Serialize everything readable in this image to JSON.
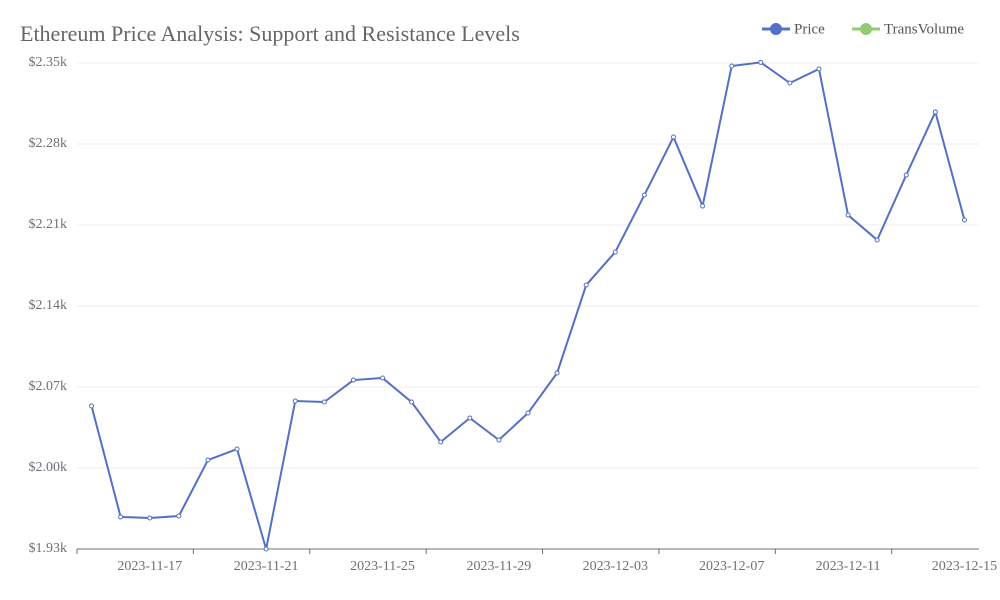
{
  "chart_data": {
    "type": "line",
    "title": "Ethereum Price Analysis: Support and Resistance Levels",
    "categories": [
      null,
      null,
      "2023-11-17",
      null,
      null,
      null,
      "2023-11-21",
      null,
      null,
      null,
      "2023-11-25",
      null,
      null,
      null,
      "2023-11-29",
      null,
      null,
      null,
      "2023-12-03",
      null,
      null,
      null,
      "2023-12-07",
      null,
      null,
      null,
      "2023-12-11",
      null,
      null,
      null,
      "2023-12-15"
    ],
    "series": [
      {
        "name": "Price",
        "color": "#5470c6",
        "values": [
          2053.6,
          1957.7,
          1956.8,
          1958.5,
          2006.9,
          2016.4,
          1930,
          2057.9,
          2057,
          2076,
          2077.8,
          2057,
          2022.5,
          2043.2,
          2024.2,
          2047.5,
          2082.1,
          2158.1,
          2186.7,
          2235.9,
          2286,
          2226.4,
          2347.4,
          2350.5,
          2332.7,
          2344.8,
          2218.6,
          2197,
          2253.2,
          2307.7,
          2214.3
        ]
      },
      {
        "name": "TransVolume",
        "color": "#91cc75",
        "values": [
          null,
          null,
          null,
          null,
          null,
          null,
          null,
          null,
          null,
          null,
          null,
          null,
          null,
          null,
          null,
          null,
          null,
          null,
          null,
          null,
          null,
          null,
          null,
          null,
          null,
          null,
          null,
          null,
          null,
          null,
          null
        ]
      }
    ],
    "ylim": [
      1930,
      2350
    ],
    "yticks": [
      {
        "value": 1930,
        "label": "$1.93k"
      },
      {
        "value": 2000,
        "label": "$2.00k"
      },
      {
        "value": 2070,
        "label": "$2.07k"
      },
      {
        "value": 2140,
        "label": "$2.14k"
      },
      {
        "value": 2210,
        "label": "$2.21k"
      },
      {
        "value": 2280,
        "label": "$2.28k"
      },
      {
        "value": 2350,
        "label": "$2.35k"
      }
    ],
    "grid": true,
    "legend": "top-right"
  }
}
